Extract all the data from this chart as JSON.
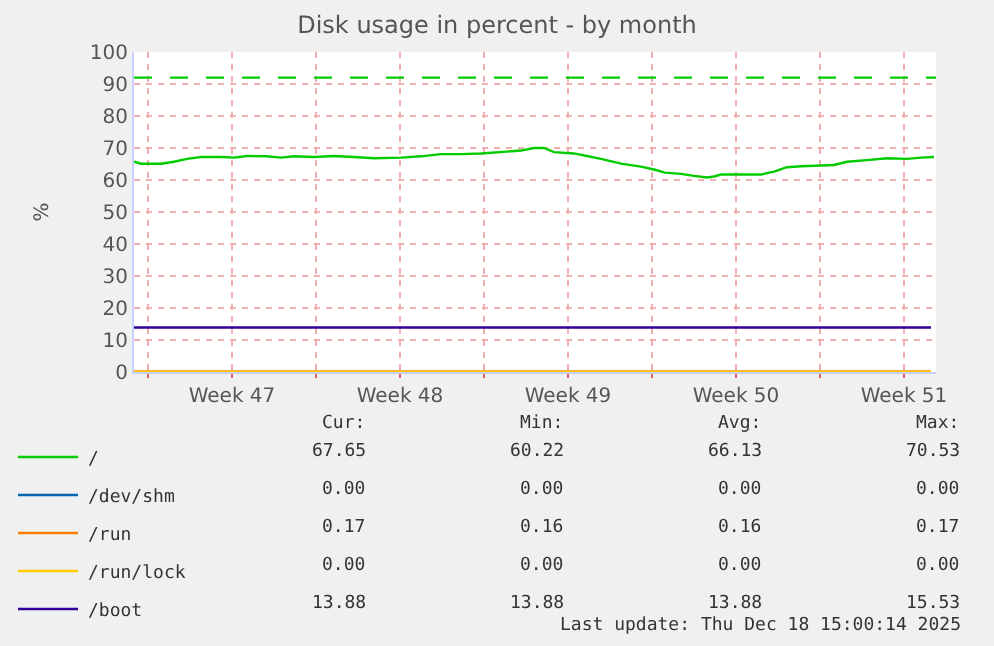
{
  "chart_data": {
    "type": "line",
    "title": "Disk usage in percent - by month",
    "ylabel": "%",
    "xlim": [
      "2025-11-16T10:00",
      "2025-12-19T20:00"
    ],
    "ylim": [
      0,
      100
    ],
    "xticks": [
      {
        "value": "2025-11-17",
        "label": null
      },
      {
        "value": "2025-11-20T12:00",
        "label": "Week 47"
      },
      {
        "value": "2025-11-24",
        "label": null
      },
      {
        "value": "2025-11-27T12:00",
        "label": "Week 48"
      },
      {
        "value": "2025-12-01",
        "label": null
      },
      {
        "value": "2025-12-04T12:00",
        "label": "Week 49"
      },
      {
        "value": "2025-12-08",
        "label": null
      },
      {
        "value": "2025-12-11T12:00",
        "label": "Week 50"
      },
      {
        "value": "2025-12-15",
        "label": null
      },
      {
        "value": "2025-12-18T12:00",
        "label": "Week 51"
      }
    ],
    "yticks": [
      0,
      10,
      20,
      30,
      40,
      50,
      60,
      70,
      80,
      90,
      100
    ],
    "x": [
      "2025-11-16T10:00",
      "2025-11-16T17:00",
      "2025-11-17T13:00",
      "2025-11-18T02:00",
      "2025-11-18T15:00",
      "2025-11-19T05:00",
      "2025-11-20T01:00",
      "2025-11-20T14:00",
      "2025-11-21T03:00",
      "2025-11-21T23:00",
      "2025-11-22T13:00",
      "2025-11-23T02:00",
      "2025-11-23T22:00",
      "2025-11-24T18:00",
      "2025-11-25T14:00",
      "2025-11-26T10:00",
      "2025-11-27T13:00",
      "2025-11-28T09:00",
      "2025-11-29T05:00",
      "2025-11-30T01:00",
      "2025-11-30T21:00",
      "2025-12-02T13:00",
      "2025-12-03T02:00",
      "2025-12-03T12:00",
      "2025-12-03T22:00",
      "2025-12-04T18:00",
      "2025-12-05T07:00",
      "2025-12-05T21:00",
      "2025-12-06T17:00",
      "2025-12-07T13:00",
      "2025-12-08T03:00",
      "2025-12-08T13:00",
      "2025-12-09T05:00",
      "2025-12-09T18:00",
      "2025-12-10T07:00",
      "2025-12-10T14:00",
      "2025-12-10T21:00",
      "2025-12-12T13:00",
      "2025-12-13T02:00",
      "2025-12-13T15:00",
      "2025-12-14T05:00",
      "2025-12-15T14:00",
      "2025-12-16T03:00",
      "2025-12-16T23:00",
      "2025-12-17T19:00",
      "2025-12-18T15:00",
      "2025-12-19T05:00",
      "2025-12-19T18:00"
    ],
    "series": [
      {
        "name": "/",
        "color": "#00cc00",
        "values": [
          65.7,
          65.1,
          65.1,
          65.7,
          66.6,
          67.2,
          67.2,
          67.0,
          67.5,
          67.4,
          67.0,
          67.4,
          67.2,
          67.5,
          67.2,
          66.8,
          67.0,
          67.4,
          68.1,
          68.1,
          68.3,
          69.2,
          70.0,
          70.0,
          68.7,
          68.3,
          67.5,
          66.6,
          65.1,
          64.2,
          63.2,
          62.3,
          61.9,
          61.3,
          60.8,
          61.1,
          61.7,
          61.7,
          62.6,
          64.0,
          64.3,
          64.7,
          65.7,
          66.2,
          66.8,
          66.6,
          67.0,
          67.2
        ]
      },
      {
        "name": "/dev/shm",
        "color": "#0066b3",
        "values": [
          null,
          null,
          null,
          null,
          null,
          null,
          null,
          null,
          null,
          null,
          null,
          null,
          null,
          null,
          null,
          null,
          null,
          null,
          null,
          null,
          null,
          null,
          null,
          null,
          null,
          null,
          null,
          null,
          null,
          null,
          null,
          null,
          null,
          null,
          null,
          null,
          null,
          null,
          null,
          null,
          null,
          null,
          null,
          null,
          null,
          null,
          null,
          null
        ]
      },
      {
        "name": "/run",
        "color": "#ff8000",
        "x": [
          "2025-11-16T10:00",
          "2025-12-19T15:00"
        ],
        "values": [
          0.2,
          0.2
        ]
      },
      {
        "name": "/run/lock",
        "color": "#ffcc00",
        "x": [
          "2025-11-16T10:00",
          "2025-12-19T15:00"
        ],
        "values": [
          0,
          0
        ]
      },
      {
        "name": "/boot",
        "color": "#330099",
        "x": [
          "2025-11-16T10:00",
          "2025-12-19T15:00"
        ],
        "values": [
          13.9,
          13.9
        ]
      }
    ],
    "ref_lines": [
      {
        "axis": "y",
        "value": 92,
        "color": "#00cc00",
        "line_style": "dashed"
      }
    ],
    "annotations": [
      "Cur:",
      "Min:",
      "Avg:",
      "Max:",
      "67.65",
      "60.22",
      "66.13",
      "70.53",
      "0.00",
      "0.00",
      "0.00",
      "0.00",
      "0.17",
      "0.16",
      "0.16",
      "0.17",
      "0.00",
      "0.00",
      "0.00",
      "0.00",
      "13.88",
      "13.88",
      "13.88",
      "15.53",
      "Last update: Thu Dec 18 15:00:14 2025"
    ],
    "grid": true,
    "legend": "bottom left",
    "marker": "none",
    "line_style": "solid"
  }
}
